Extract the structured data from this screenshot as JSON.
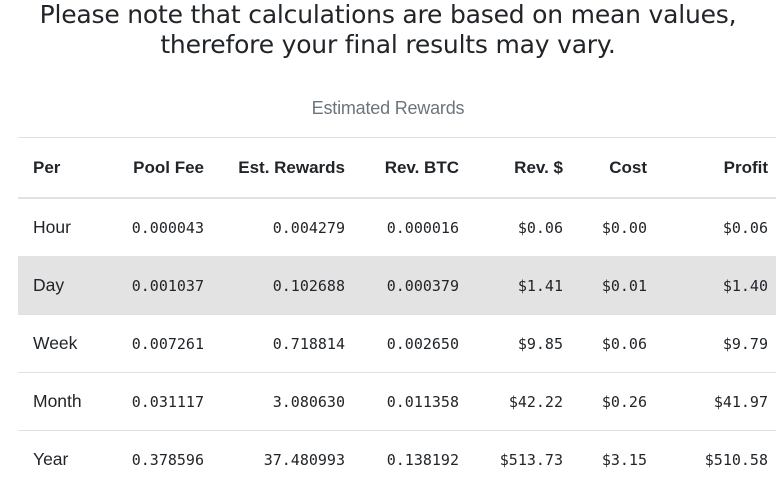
{
  "notice": {
    "line1": "Please note that calculations are based on mean values,",
    "line2": "therefore your final results may vary."
  },
  "table": {
    "caption": "Estimated Rewards",
    "headers": [
      "Per",
      "Pool Fee",
      "Est. Rewards",
      "Rev. BTC",
      "Rev. $",
      "Cost",
      "Profit"
    ],
    "rows": [
      {
        "per": "Hour",
        "pool_fee": "0.000043",
        "est_rewards": "0.004279",
        "rev_btc": "0.000016",
        "rev_usd": "$0.06",
        "cost": "$0.00",
        "profit": "$0.06"
      },
      {
        "per": "Day",
        "pool_fee": "0.001037",
        "est_rewards": "0.102688",
        "rev_btc": "0.000379",
        "rev_usd": "$1.41",
        "cost": "$0.01",
        "profit": "$1.40"
      },
      {
        "per": "Week",
        "pool_fee": "0.007261",
        "est_rewards": "0.718814",
        "rev_btc": "0.002650",
        "rev_usd": "$9.85",
        "cost": "$0.06",
        "profit": "$9.79"
      },
      {
        "per": "Month",
        "pool_fee": "0.031117",
        "est_rewards": "3.080630",
        "rev_btc": "0.011358",
        "rev_usd": "$42.22",
        "cost": "$0.26",
        "profit": "$41.97"
      },
      {
        "per": "Year",
        "pool_fee": "0.378596",
        "est_rewards": "37.480993",
        "rev_btc": "0.138192",
        "rev_usd": "$513.73",
        "cost": "$3.15",
        "profit": "$510.58"
      }
    ],
    "highlighted_row": "Day",
    "colors": {
      "highlight_background": "#e3e3e3",
      "caption_text": "#6c757d",
      "border": "#dee2e6"
    }
  }
}
